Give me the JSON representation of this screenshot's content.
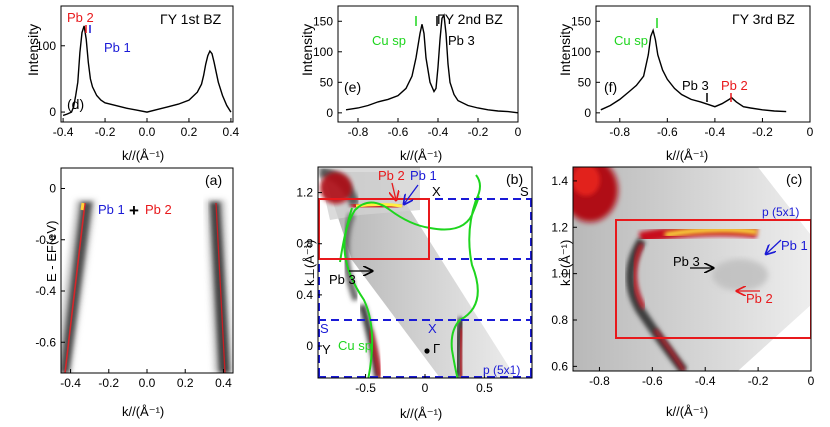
{
  "figure": {
    "top_ylabel": "Intensity",
    "xlabel": "k//(Å⁻¹)",
    "ylabel_a": "E - EF(eV)",
    "ylabel_bc": "k⊥(Å⁻¹)"
  },
  "colors": {
    "red": "#e8191c",
    "blue": "#1a1ad6",
    "green": "#1ed51e",
    "black": "#000000"
  },
  "panels": {
    "d": {
      "tag": "(d)",
      "title": "ΓY 1st BZ",
      "labels": [
        "Pb 2",
        "Pb 1"
      ],
      "xticks": [
        "-0.4",
        "-0.2",
        "0.0",
        "0.2",
        "0.4"
      ],
      "yticks": [
        "0",
        "100"
      ]
    },
    "e": {
      "tag": "(e)",
      "title": "ΓY 2nd BZ",
      "labels": [
        "Cu sp",
        "Pb 3"
      ],
      "xticks": [
        "-0.8",
        "-0.6",
        "-0.4",
        "-0.2",
        "0"
      ],
      "yticks": [
        "0",
        "50",
        "100",
        "150"
      ]
    },
    "f": {
      "tag": "(f)",
      "title": "ΓY 3rd BZ",
      "labels": [
        "Cu sp",
        "Pb 3",
        "Pb 2"
      ],
      "xticks": [
        "-0.8",
        "-0.6",
        "-0.4",
        "-0.2",
        "0"
      ],
      "yticks": [
        "0",
        "50",
        "100",
        "150"
      ]
    },
    "a": {
      "tag": "(a)",
      "labels": [
        "Pb 1",
        "+",
        "Pb 2"
      ],
      "xticks": [
        "-0.4",
        "-0.2",
        "0.0",
        "0.2",
        "0.4"
      ],
      "yticks": [
        "0",
        "-0.2",
        "-0.4",
        "-0.6"
      ]
    },
    "b": {
      "tag": "(b)",
      "labels": [
        "Pb 2",
        "Pb 1",
        "X",
        "S",
        "Pb 3",
        "S",
        "X",
        "Y",
        "Cu sp",
        "Γ",
        "p (5x1)"
      ],
      "xticks": [
        "-0.5",
        "0",
        "0.5"
      ],
      "yticks": [
        "1.2",
        "0.8",
        "0.4",
        "0"
      ]
    },
    "c": {
      "tag": "(c)",
      "labels": [
        "p (5x1)",
        "Pb 1",
        "Pb 3",
        "Pb 2"
      ],
      "xticks": [
        "-0.8",
        "-0.6",
        "-0.4",
        "-0.2",
        "0"
      ],
      "yticks": [
        "1.4",
        "1.2",
        "1.0",
        "0.8",
        "0.6"
      ]
    }
  },
  "chart_data": [
    {
      "panel": "d",
      "type": "line",
      "title": "ΓY 1st BZ",
      "xlabel": "k//(Å⁻¹)",
      "ylabel": "Intensity",
      "xlim": [
        -0.41,
        0.41
      ],
      "ylim": [
        -15,
        160
      ],
      "x": [
        -0.4,
        -0.38,
        -0.36,
        -0.35,
        -0.34,
        -0.33,
        -0.32,
        -0.31,
        -0.3,
        -0.29,
        -0.28,
        -0.27,
        -0.26,
        -0.24,
        -0.22,
        -0.2,
        -0.15,
        -0.1,
        -0.05,
        0.0,
        0.05,
        0.1,
        0.15,
        0.2,
        0.24,
        0.26,
        0.27,
        0.28,
        0.29,
        0.3,
        0.31,
        0.32,
        0.33,
        0.34,
        0.36,
        0.38,
        0.4
      ],
      "y": [
        -5,
        -3,
        0,
        8,
        25,
        45,
        90,
        120,
        130,
        110,
        75,
        50,
        38,
        25,
        18,
        14,
        10,
        6,
        3,
        0,
        4,
        8,
        12,
        18,
        30,
        42,
        55,
        72,
        85,
        92,
        88,
        75,
        60,
        45,
        25,
        10,
        0
      ]
    },
    {
      "panel": "e",
      "type": "line",
      "title": "ΓY 2nd BZ",
      "xlabel": "k//(Å⁻¹)",
      "ylabel": "Intensity",
      "xlim": [
        -0.9,
        0.0
      ],
      "ylim": [
        -15,
        175
      ],
      "x": [
        -0.86,
        -0.8,
        -0.75,
        -0.7,
        -0.65,
        -0.6,
        -0.56,
        -0.53,
        -0.51,
        -0.49,
        -0.48,
        -0.47,
        -0.46,
        -0.44,
        -0.42,
        -0.41,
        -0.4,
        -0.39,
        -0.38,
        -0.37,
        -0.36,
        -0.35,
        -0.34,
        -0.32,
        -0.3,
        -0.25,
        -0.2,
        -0.15,
        -0.1,
        -0.05,
        0.0
      ],
      "y": [
        5,
        8,
        12,
        18,
        22,
        28,
        40,
        60,
        90,
        130,
        145,
        130,
        90,
        50,
        35,
        40,
        75,
        120,
        155,
        160,
        130,
        80,
        50,
        30,
        20,
        12,
        8,
        5,
        3,
        2,
        0
      ]
    },
    {
      "panel": "f",
      "type": "line",
      "title": "ΓY 3rd BZ",
      "xlabel": "k//(Å⁻¹)",
      "ylabel": "Intensity",
      "xlim": [
        -0.9,
        0.0
      ],
      "ylim": [
        -15,
        175
      ],
      "x": [
        -0.88,
        -0.84,
        -0.8,
        -0.76,
        -0.73,
        -0.7,
        -0.68,
        -0.67,
        -0.66,
        -0.65,
        -0.64,
        -0.62,
        -0.6,
        -0.57,
        -0.54,
        -0.5,
        -0.46,
        -0.43,
        -0.4,
        -0.37,
        -0.34,
        -0.33,
        -0.31,
        -0.28,
        -0.25,
        -0.2,
        -0.15,
        -0.1
      ],
      "y": [
        5,
        12,
        22,
        35,
        45,
        60,
        95,
        125,
        135,
        120,
        95,
        70,
        55,
        40,
        30,
        22,
        18,
        14,
        10,
        15,
        22,
        25,
        18,
        10,
        8,
        5,
        3,
        2
      ]
    },
    {
      "panel": "a",
      "type": "heatmap",
      "xlabel": "k//(Å⁻¹)",
      "ylabel": "E - EF(eV)",
      "xlim": [
        -0.45,
        0.45
      ],
      "ylim": [
        -0.72,
        0.08
      ],
      "bands": [
        {
          "name": "Pb 1 + Pb 2",
          "k_at_EF": -0.29,
          "k_at_bottom": -0.36
        },
        {
          "name": "",
          "k_at_EF": 0.29,
          "k_at_bottom": 0.37
        }
      ]
    },
    {
      "panel": "b",
      "type": "heatmap",
      "xlabel": "k//(Å⁻¹)",
      "ylabel": "k⊥(Å⁻¹)",
      "xlim": [
        -0.9,
        0.9
      ],
      "ylim": [
        -0.25,
        1.4
      ],
      "grid_lines_k_perp": [
        1.2,
        0.72,
        0.21,
        -0.25
      ],
      "red_box": {
        "k_par": [
          -0.9,
          0.0
        ],
        "k_perp": [
          0.72,
          1.2
        ]
      }
    },
    {
      "panel": "c",
      "type": "heatmap",
      "xlabel": "k//(Å⁻¹)",
      "ylabel": "k⊥(Å⁻¹)",
      "xlim": [
        -0.9,
        0.0
      ],
      "ylim": [
        0.58,
        1.46
      ],
      "red_box": {
        "k_par": [
          -0.83,
          0.0
        ],
        "k_perp": [
          0.72,
          1.23
        ]
      }
    }
  ]
}
